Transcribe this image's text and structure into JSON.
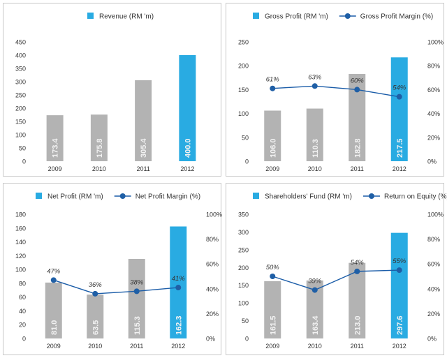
{
  "colors": {
    "bar_gray": "#b3b3b3",
    "bar_blue": "#29abe2",
    "line": "#1a5ca8",
    "marker": "#1f5fa6",
    "axis_text": "#333333",
    "bar_label": "#f2f2f2",
    "point_label": "#333333",
    "frame": "#c8c8c8",
    "gap": "#ececec"
  },
  "chart_data": [
    {
      "type": "bar",
      "title": "Revenue (RM 'm)",
      "categories": [
        "2009",
        "2010",
        "2011",
        "2012"
      ],
      "values": [
        173.4,
        175.8,
        305.4,
        400.0
      ],
      "value_labels": [
        "173.4",
        "175.8",
        "305.4",
        "400.0"
      ],
      "ylim": [
        0,
        450
      ],
      "yticks": [
        0,
        50,
        100,
        150,
        200,
        250,
        300,
        350,
        400,
        450
      ],
      "ytick_labels": [
        "0",
        "50",
        "100",
        "150",
        "200",
        "250",
        "300",
        "350",
        "400",
        "450"
      ],
      "legend": [
        {
          "marker": "square",
          "label": "Revenue (RM 'm)"
        }
      ]
    },
    {
      "type": "bar",
      "title": "Gross Profit (RM 'm) / Gross Profit Margin (%)",
      "categories": [
        "2009",
        "2010",
        "2011",
        "2012"
      ],
      "values": [
        106.0,
        110.3,
        182.8,
        217.5
      ],
      "value_labels": [
        "106.0",
        "110.3",
        "182.8",
        "217.5"
      ],
      "ylim": [
        0,
        250
      ],
      "yticks": [
        0,
        50,
        100,
        150,
        200,
        250
      ],
      "ytick_labels": [
        "0",
        "50",
        "100",
        "150",
        "200",
        "250"
      ],
      "line_series": {
        "name": "Gross Profit Margin (%)",
        "values": [
          61,
          63,
          60,
          54
        ],
        "labels": [
          "61%",
          "63%",
          "60%",
          "54%"
        ],
        "ylim": [
          0,
          100
        ],
        "yticks": [
          0,
          20,
          40,
          60,
          80,
          100
        ],
        "ytick_labels": [
          "0%",
          "20%",
          "40%",
          "60%",
          "80%",
          "100%"
        ]
      },
      "legend": [
        {
          "marker": "square",
          "label": "Gross Profit (RM 'm)"
        },
        {
          "marker": "line",
          "label": "Gross Profit Margin (%)"
        }
      ]
    },
    {
      "type": "bar",
      "title": "Net Profit (RM 'm) / Net Profit Margin (%)",
      "categories": [
        "2009",
        "2010",
        "2011",
        "2012"
      ],
      "values": [
        81.0,
        63.5,
        115.3,
        162.3
      ],
      "value_labels": [
        "81.0",
        "63.5",
        "115.3",
        "162.3"
      ],
      "ylim": [
        0,
        180
      ],
      "yticks": [
        0,
        20,
        40,
        60,
        80,
        100,
        120,
        140,
        160,
        180
      ],
      "ytick_labels": [
        "0",
        "20",
        "40",
        "60",
        "80",
        "100",
        "120",
        "140",
        "160",
        "180"
      ],
      "line_series": {
        "name": "Net Profit Margin (%)",
        "values": [
          47,
          36,
          38,
          41
        ],
        "labels": [
          "47%",
          "36%",
          "38%",
          "41%"
        ],
        "ylim": [
          0,
          100
        ],
        "yticks": [
          0,
          20,
          40,
          60,
          80,
          100
        ],
        "ytick_labels": [
          "0%",
          "20%",
          "40%",
          "60%",
          "80%",
          "100%"
        ]
      },
      "legend": [
        {
          "marker": "square",
          "label": "Net Profit (RM 'm)"
        },
        {
          "marker": "line",
          "label": "Net Profit Margin (%)"
        }
      ]
    },
    {
      "type": "bar",
      "title": "Shareholders' Fund (RM 'm) / Return on Equity (%)",
      "categories": [
        "2009",
        "2010",
        "2011",
        "2012"
      ],
      "values": [
        161.5,
        163.4,
        213.0,
        297.6
      ],
      "value_labels": [
        "161.5",
        "163.4",
        "213.0",
        "297.6"
      ],
      "ylim": [
        0,
        350
      ],
      "yticks": [
        0,
        50,
        100,
        150,
        200,
        250,
        300,
        350
      ],
      "ytick_labels": [
        "0",
        "50",
        "100",
        "150",
        "200",
        "250",
        "300",
        "350"
      ],
      "line_series": {
        "name": "Return on Equity (%)",
        "values": [
          50,
          39,
          54,
          55
        ],
        "labels": [
          "50%",
          "39%",
          "54%",
          "55%"
        ],
        "ylim": [
          0,
          100
        ],
        "yticks": [
          0,
          20,
          40,
          60,
          80,
          100
        ],
        "ytick_labels": [
          "0%",
          "20%",
          "40%",
          "60%",
          "80%",
          "100%"
        ]
      },
      "legend": [
        {
          "marker": "square",
          "label": "Shareholders' Fund (RM 'm)"
        },
        {
          "marker": "line",
          "label": "Return on Equity (%)"
        }
      ]
    }
  ]
}
